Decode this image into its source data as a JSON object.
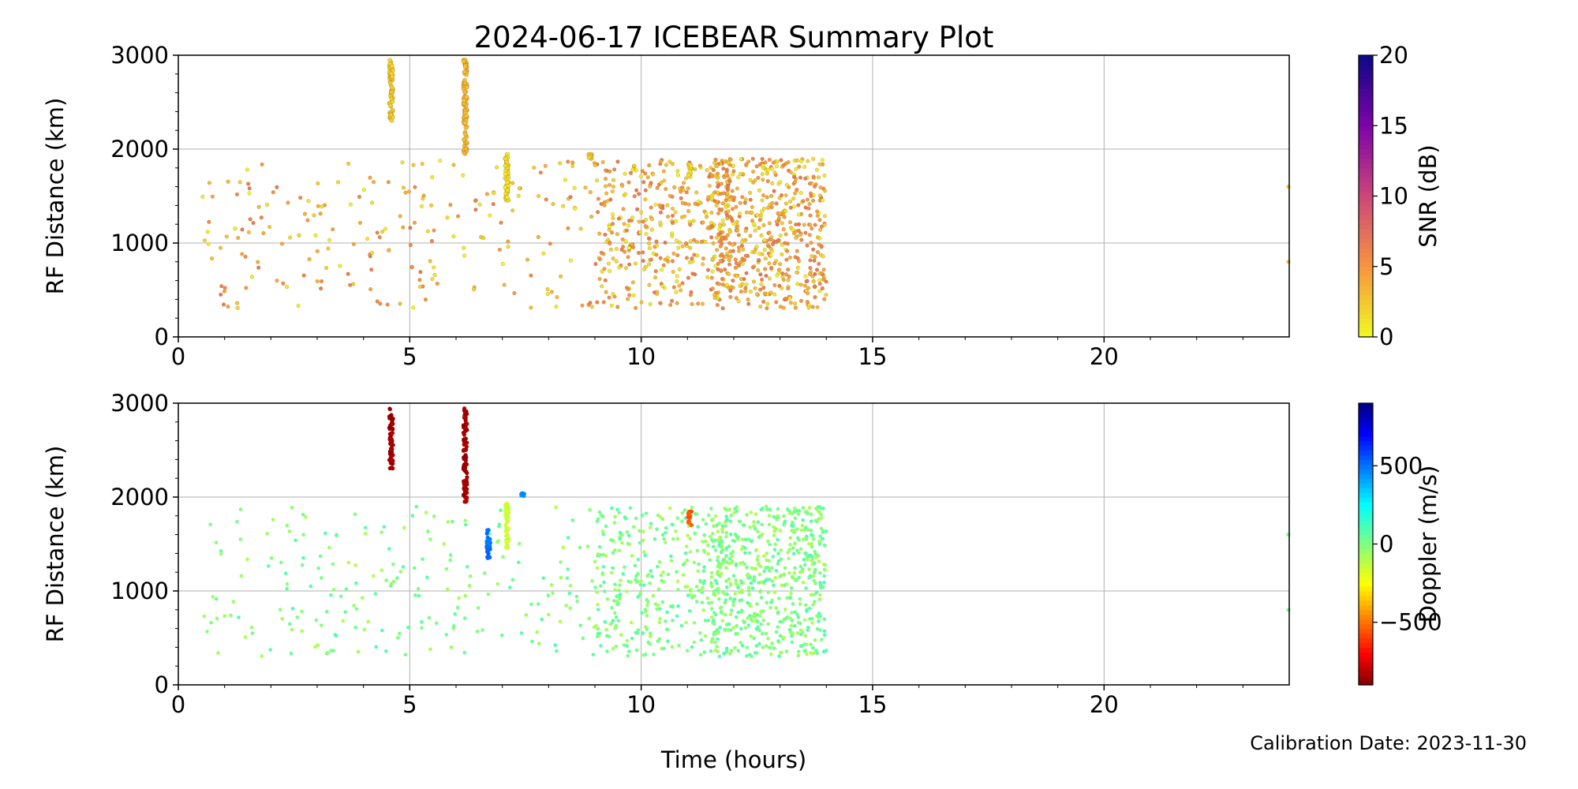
{
  "figure": {
    "title": "2024-06-17 ICEBEAR Summary Plot",
    "calibration_note": "Calibration Date: 2023-11-30",
    "xlabel": "Time (hours)"
  },
  "chart_data": [
    {
      "type": "scatter",
      "panel": "top",
      "ylabel": "RF Distance (km)",
      "xlim": [
        0,
        24
      ],
      "ylim": [
        0,
        3000
      ],
      "x_ticks": [
        0,
        5,
        10,
        15,
        20
      ],
      "y_ticks": [
        0,
        1000,
        2000,
        3000
      ],
      "grid": true,
      "color_by": "snr",
      "colorbar": {
        "label": "SNR (dB)",
        "colormap": "plasma_r",
        "range": [
          0,
          20
        ],
        "ticks": [
          0,
          5,
          10,
          15,
          20
        ],
        "tick_labels": [
          "0",
          "5",
          "10",
          "15",
          "20"
        ]
      },
      "clusters": [
        {
          "x": 4.6,
          "y_range": [
            2300,
            2950
          ],
          "value": 2,
          "note": "dense vertical streak"
        },
        {
          "x": 6.2,
          "y_range": [
            1950,
            2950
          ],
          "value": 3,
          "note": "dense vertical streak"
        },
        {
          "x": 7.1,
          "y_range": [
            1450,
            1950
          ],
          "value": 1
        },
        {
          "x": 11.05,
          "y_range": [
            1700,
            1850
          ],
          "value": 1
        },
        {
          "x": 8.9,
          "y_range": [
            1900,
            1950
          ],
          "value": 2
        }
      ],
      "scatter_region": {
        "x_range": [
          0.5,
          14
        ],
        "y_range": [
          300,
          1900
        ],
        "value_range": [
          0,
          7
        ],
        "density": "increases toward 12-14 h"
      },
      "isolated_points": [
        [
          24,
          1600
        ],
        [
          24,
          800
        ]
      ]
    },
    {
      "type": "scatter",
      "panel": "bottom",
      "ylabel": "RF Distance (km)",
      "xlim": [
        0,
        24
      ],
      "ylim": [
        0,
        3000
      ],
      "x_ticks": [
        0,
        5,
        10,
        15,
        20
      ],
      "y_ticks": [
        0,
        1000,
        2000,
        3000
      ],
      "grid": true,
      "color_by": "doppler",
      "colorbar": {
        "label": "Doppler (m/s)",
        "colormap": "jet_r",
        "range": [
          -900,
          900
        ],
        "ticks": [
          -500,
          0,
          500
        ],
        "tick_labels": [
          "−500",
          "0",
          "500"
        ]
      },
      "clusters": [
        {
          "x": 4.6,
          "y_range": [
            2300,
            2950
          ],
          "value": -850
        },
        {
          "x": 6.2,
          "y_range": [
            1950,
            2950
          ],
          "value": -850
        },
        {
          "x": 6.7,
          "y_range": [
            1350,
            1650
          ],
          "value": 500
        },
        {
          "x": 7.1,
          "y_range": [
            1450,
            1950
          ],
          "value": -150
        },
        {
          "x": 7.45,
          "y_range": [
            2000,
            2050
          ],
          "value": 450
        },
        {
          "x": 11.05,
          "y_range": [
            1700,
            1850
          ],
          "value": -550
        }
      ],
      "scatter_region": {
        "x_range": [
          0.5,
          14
        ],
        "y_range": [
          300,
          1900
        ],
        "value_range": [
          -100,
          100
        ]
      },
      "isolated_points": [
        [
          24,
          1600
        ],
        [
          24,
          800
        ]
      ]
    }
  ]
}
